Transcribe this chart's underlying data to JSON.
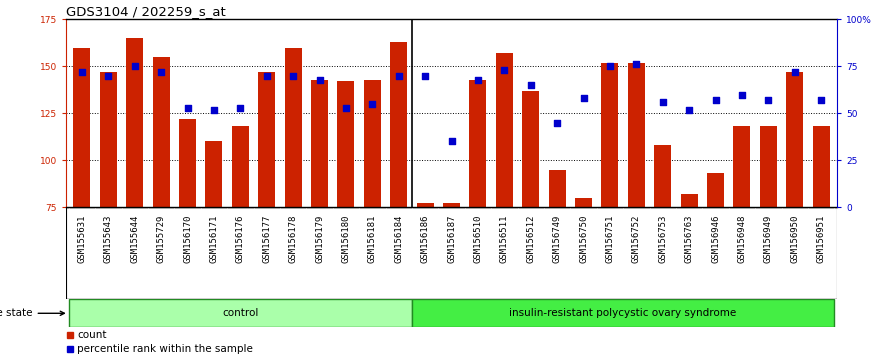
{
  "title": "GDS3104 / 202259_s_at",
  "samples": [
    "GSM155631",
    "GSM155643",
    "GSM155644",
    "GSM155729",
    "GSM156170",
    "GSM156171",
    "GSM156176",
    "GSM156177",
    "GSM156178",
    "GSM156179",
    "GSM156180",
    "GSM156181",
    "GSM156184",
    "GSM156186",
    "GSM156187",
    "GSM156510",
    "GSM156511",
    "GSM156512",
    "GSM156749",
    "GSM156750",
    "GSM156751",
    "GSM156752",
    "GSM156753",
    "GSM156763",
    "GSM156946",
    "GSM156948",
    "GSM156949",
    "GSM156950",
    "GSM156951"
  ],
  "bar_values": [
    160,
    147,
    165,
    155,
    122,
    110,
    118,
    147,
    160,
    143,
    142,
    143,
    163,
    77,
    77,
    143,
    157,
    137,
    95,
    80,
    152,
    152,
    108,
    82,
    93,
    118,
    118,
    147,
    118
  ],
  "percentile_values": [
    72,
    70,
    75,
    72,
    53,
    52,
    53,
    70,
    70,
    68,
    53,
    55,
    70,
    70,
    35,
    68,
    73,
    65,
    45,
    58,
    75,
    76,
    56,
    52,
    57,
    60,
    57,
    72,
    57
  ],
  "control_count": 13,
  "disease_count": 16,
  "group1_label": "control",
  "group2_label": "insulin-resistant polycystic ovary syndrome",
  "bar_color": "#CC2200",
  "dot_color": "#0000CC",
  "ylim_left": [
    75,
    175
  ],
  "ylim_right": [
    0,
    100
  ],
  "yticks_left": [
    75,
    100,
    125,
    150,
    175
  ],
  "yticks_right": [
    0,
    25,
    50,
    75,
    100
  ],
  "ytick_labels_right": [
    "0",
    "25",
    "50",
    "75",
    "100%"
  ],
  "title_fontsize": 9.5,
  "tick_fontsize": 6.5,
  "label_fontsize": 7.5,
  "ctrl_band_color": "#AAFFAA",
  "disease_band_color": "#44EE44",
  "band_edge_color": "#228B22",
  "xtick_bg_color": "#D8D8D8"
}
